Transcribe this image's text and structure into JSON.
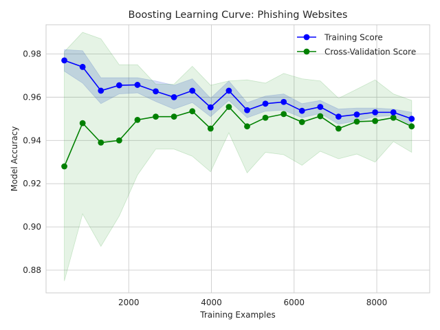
{
  "chart_data": {
    "type": "line",
    "title": "Boosting Learning Curve: Phishing Websites",
    "xlabel": "Training Examples",
    "ylabel": "Model Accuracy",
    "xlim": [
      0,
      9280
    ],
    "ylim": [
      0.8695,
      0.9935
    ],
    "xticks": [
      2000,
      4000,
      6000,
      8000
    ],
    "yticks": [
      0.88,
      0.9,
      0.92,
      0.94,
      0.96,
      0.98
    ],
    "ytick_labels": [
      "0.88",
      "0.90",
      "0.92",
      "0.94",
      "0.96",
      "0.98"
    ],
    "grid": true,
    "legend_position": "top-right",
    "x": [
      442,
      884,
      1327,
      1769,
      2211,
      2653,
      3095,
      3538,
      3980,
      4422,
      4864,
      5306,
      5749,
      6191,
      6633,
      7075,
      7517,
      7960,
      8402,
      8844
    ],
    "series": [
      {
        "name": "Training Score",
        "color": "#0000ff",
        "band_color": "#3b5bd6",
        "values": [
          0.977,
          0.974,
          0.963,
          0.9655,
          0.9657,
          0.9627,
          0.96,
          0.963,
          0.9553,
          0.963,
          0.954,
          0.957,
          0.9578,
          0.9537,
          0.9555,
          0.951,
          0.952,
          0.953,
          0.953,
          0.95
        ],
        "upper": [
          0.982,
          0.9815,
          0.969,
          0.969,
          0.969,
          0.9675,
          0.9655,
          0.9685,
          0.9595,
          0.9675,
          0.9575,
          0.9605,
          0.9615,
          0.957,
          0.9585,
          0.9545,
          0.955,
          0.955,
          0.9545,
          0.953
        ],
        "lower": [
          0.972,
          0.9665,
          0.957,
          0.9615,
          0.962,
          0.958,
          0.9545,
          0.9575,
          0.951,
          0.9585,
          0.9505,
          0.9535,
          0.954,
          0.9505,
          0.9525,
          0.9475,
          0.949,
          0.951,
          0.9515,
          0.947
        ]
      },
      {
        "name": "Cross-Validation Score",
        "color": "#008000",
        "band_color": "#2ca02c",
        "values": [
          0.928,
          0.948,
          0.939,
          0.94,
          0.9495,
          0.951,
          0.951,
          0.9535,
          0.9455,
          0.9555,
          0.9465,
          0.9505,
          0.9522,
          0.9485,
          0.9512,
          0.9455,
          0.9487,
          0.949,
          0.9505,
          0.9465
        ],
        "upper": [
          0.981,
          0.99,
          0.987,
          0.975,
          0.975,
          0.966,
          0.966,
          0.9743,
          0.9655,
          0.9675,
          0.968,
          0.9665,
          0.971,
          0.9685,
          0.9675,
          0.9595,
          0.9637,
          0.968,
          0.9615,
          0.9585
        ],
        "lower": [
          0.875,
          0.906,
          0.891,
          0.905,
          0.924,
          0.936,
          0.936,
          0.9327,
          0.9255,
          0.9435,
          0.925,
          0.9345,
          0.9334,
          0.9285,
          0.935,
          0.9315,
          0.9337,
          0.93,
          0.9395,
          0.9345
        ]
      }
    ]
  }
}
